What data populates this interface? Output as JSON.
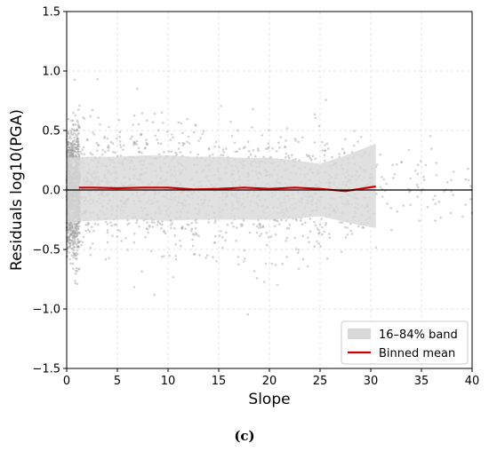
{
  "chart_data": {
    "type": "scatter",
    "xlabel": "Slope",
    "ylabel": "Residuals log10(PGA)",
    "xlim": [
      0,
      40
    ],
    "ylim": [
      -1.5,
      1.5
    ],
    "x_ticks": [
      0,
      5,
      10,
      15,
      20,
      25,
      30,
      35,
      40
    ],
    "y_ticks": [
      -1.5,
      -1.0,
      -0.5,
      0.0,
      0.5,
      1.0,
      1.5
    ],
    "x_tick_labels": [
      "0",
      "5",
      "10",
      "15",
      "20",
      "25",
      "30",
      "35",
      "40"
    ],
    "y_tick_labels": [
      "−1.5",
      "−1.0",
      "−0.5",
      "0.0",
      "0.5",
      "1.0",
      "1.5"
    ],
    "grid": true,
    "zero_line": 0,
    "legend_position": "bottom-right",
    "caption": "(c)",
    "series": [
      {
        "name": "16–84% band",
        "kind": "band",
        "color": "#d9d9d9",
        "x": [
          0,
          2.5,
          5,
          7.5,
          10,
          12.5,
          15,
          17.5,
          20,
          22.5,
          25,
          27.5,
          30.5
        ],
        "lower": [
          -0.27,
          -0.26,
          -0.25,
          -0.25,
          -0.26,
          -0.25,
          -0.25,
          -0.25,
          -0.25,
          -0.24,
          -0.22,
          -0.27,
          -0.32
        ],
        "upper": [
          0.27,
          0.28,
          0.28,
          0.29,
          0.29,
          0.28,
          0.28,
          0.27,
          0.27,
          0.25,
          0.22,
          0.29,
          0.39
        ]
      },
      {
        "name": "Binned mean",
        "kind": "line",
        "color": "#cc0000",
        "x": [
          1.2,
          2.5,
          5,
          7.5,
          10,
          12.5,
          15,
          17.5,
          20,
          22.5,
          25,
          27.5,
          30.5
        ],
        "y": [
          0.02,
          0.02,
          0.015,
          0.02,
          0.02,
          0.005,
          0.01,
          0.02,
          0.01,
          0.02,
          0.01,
          -0.01,
          0.03
        ]
      }
    ],
    "scatter_color": "#9e9e9e",
    "band_color": "#d9d9d9",
    "line_color": "#cc0000"
  }
}
